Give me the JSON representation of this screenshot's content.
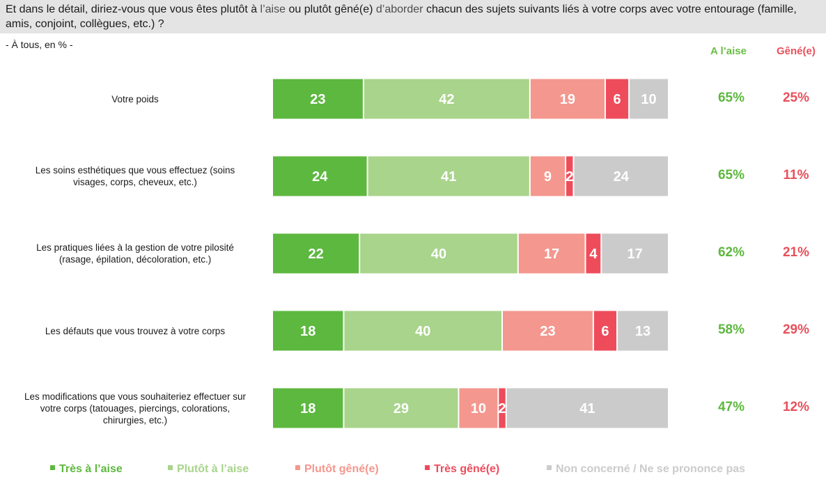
{
  "header": {
    "question_part1": "Et dans le détail, diriez-vous que vous êtes plutôt à ",
    "question_hl1": "l’aise",
    "question_part2": " ou plutôt gêné(e) ",
    "question_hl2": "d’aborder",
    "question_part3": " chacun des sujets suivants liés à votre corps avec votre entourage (famille, amis, conjoint, collègues, etc.) ?",
    "subtitle": "- À tous, en % -"
  },
  "columns": {
    "aise": "A l’aise",
    "gene": "Gêné(e)"
  },
  "colors": {
    "tres_aise": "#5db83f",
    "plutot_aise": "#a8d48b",
    "plutot_gene": "#f4978e",
    "tres_gene": "#ee4c5b",
    "non_concerne": "#cccbcb",
    "aise_text": "#5db83f",
    "gene_text": "#e8505b"
  },
  "chart_data": {
    "type": "bar",
    "orientation": "horizontal",
    "stacked": true,
    "unit": "%",
    "categories": [
      "Votre poids",
      "Les soins esthétiques que vous effectuez (soins visages, corps, cheveux, etc.)",
      "Les pratiques liées à la gestion de votre pilosité (rasage, épilation, décoloration, etc.)",
      "Les défauts que vous trouvez à votre corps",
      "Les modifications que vous souhaiteriez effectuer sur votre corps (tatouages, piercings, colorations, chirurgies, etc.)"
    ],
    "series": [
      {
        "name": "Très à l’aise",
        "values": [
          23,
          24,
          22,
          18,
          18
        ],
        "color": "#5db83f"
      },
      {
        "name": "Plutôt à l’aise",
        "values": [
          42,
          41,
          40,
          40,
          29
        ],
        "color": "#a8d48b"
      },
      {
        "name": "Plutôt gêné(e)",
        "values": [
          19,
          9,
          17,
          23,
          10
        ],
        "color": "#f4978e"
      },
      {
        "name": "Très gêné(e)",
        "values": [
          6,
          2,
          4,
          6,
          2
        ],
        "color": "#ee4c5b"
      },
      {
        "name": "Non concerné / Ne se prononce pas",
        "values": [
          10,
          24,
          17,
          13,
          41
        ],
        "color": "#cccbcb"
      }
    ],
    "summary_aise": [
      "65%",
      "65%",
      "62%",
      "58%",
      "47%"
    ],
    "summary_gene": [
      "25%",
      "11%",
      "21%",
      "29%",
      "12%"
    ],
    "legend_position": "bottom"
  },
  "rows": [
    {
      "label_lines": [
        "Votre poids"
      ]
    },
    {
      "label_lines": [
        "Les soins esthétiques que vous effectuez (soins",
        "visages, corps, cheveux, etc.)"
      ]
    },
    {
      "label_lines": [
        "Les pratiques liées à la gestion de votre pilosité",
        "(rasage, épilation, décoloration, etc.)"
      ]
    },
    {
      "label_lines": [
        "Les défauts que vous trouvez à votre corps"
      ]
    },
    {
      "label_lines": [
        "Les modifications que vous souhaiteriez effectuer sur",
        "votre corps (tatouages, piercings, colorations,",
        "chirurgies, etc.)"
      ]
    }
  ],
  "legend": [
    {
      "label": "Très à l’aise",
      "color": "#5db83f"
    },
    {
      "label": "Plutôt à l’aise",
      "color": "#a8d48b"
    },
    {
      "label": "Plutôt gêné(e)",
      "color": "#f4978e"
    },
    {
      "label": "Très gêné(e)",
      "color": "#ee4c5b"
    },
    {
      "label": "Non concerné / Ne se prononce pas",
      "color": "#cccbcb"
    }
  ]
}
